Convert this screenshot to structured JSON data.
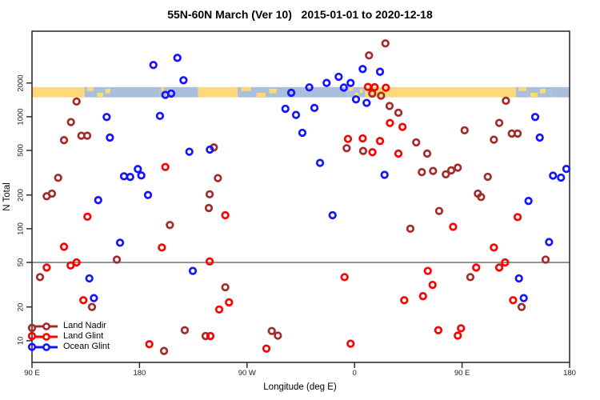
{
  "title": "55N-60N March (Ver 10)   2015-01-01 to 2020-12-18",
  "chart_data": {
    "type": "scatter",
    "title": "55N-60N March (Ver 10)   2015-01-01 to 2020-12-18",
    "xlabel": "Longitude (deg E)",
    "ylabel": "N Total",
    "x_axis": {
      "range": [
        90,
        540
      ],
      "note": "longitude increases eastward from 90E, wrapping through 180, 90W, 0, 90E to 180",
      "ticks": [
        {
          "value": 90,
          "label": "90 E"
        },
        {
          "value": 180,
          "label": "180"
        },
        {
          "value": 270,
          "label": "90 W"
        },
        {
          "value": 360,
          "label": "0"
        },
        {
          "value": 450,
          "label": "90 E"
        },
        {
          "value": 540,
          "label": "180"
        }
      ]
    },
    "y_axis": {
      "scale": "log",
      "range": [
        6.4,
        5807
      ],
      "ticks": [
        {
          "value": 10,
          "label": "10"
        },
        {
          "value": 20,
          "label": "20"
        },
        {
          "value": 50,
          "label": "50"
        },
        {
          "value": 100,
          "label": "100"
        },
        {
          "value": 200,
          "label": "200"
        },
        {
          "value": 500,
          "label": "500"
        },
        {
          "value": 1000,
          "label": "1000"
        },
        {
          "value": 2000,
          "label": "2000"
        }
      ]
    },
    "reference_line": {
      "value": 50,
      "color": "#666666"
    },
    "coast_band": {
      "top_value": 1840,
      "bottom_value": 1490,
      "land_color": "#FDD97A",
      "ocean_color": "#A9BFDB",
      "segments": [
        {
          "from": 90,
          "to": 134,
          "type": "land"
        },
        {
          "from": 134,
          "to": 159,
          "type": "mixed"
        },
        {
          "from": 159,
          "to": 197,
          "type": "ocean"
        },
        {
          "from": 197,
          "to": 209,
          "type": "mixed"
        },
        {
          "from": 209,
          "to": 229,
          "type": "ocean"
        },
        {
          "from": 229,
          "to": 262,
          "type": "land"
        },
        {
          "from": 262,
          "to": 300,
          "type": "mixed"
        },
        {
          "from": 300,
          "to": 354,
          "type": "ocean"
        },
        {
          "from": 354,
          "to": 369,
          "type": "mixed"
        },
        {
          "from": 369,
          "to": 495,
          "type": "land"
        },
        {
          "from": 495,
          "to": 524,
          "type": "mixed"
        },
        {
          "from": 524,
          "to": 540,
          "type": "ocean"
        }
      ]
    },
    "legend": {
      "position": "bottom-left"
    },
    "series": [
      {
        "name": "Land Nadir",
        "color": "#A52A2A",
        "points": [
          [
            90,
            13
          ],
          [
            96.7,
            37
          ],
          [
            102.3,
            195
          ],
          [
            106.7,
            206
          ],
          [
            111.9,
            285
          ],
          [
            116.8,
            618
          ],
          [
            122.6,
            896
          ],
          [
            127.3,
            1368
          ],
          [
            131.3,
            677
          ],
          [
            136.2,
            677
          ],
          [
            140.2,
            20
          ],
          [
            161,
            53
          ],
          [
            200.5,
            8.1
          ],
          [
            205.4,
            108
          ],
          [
            217.9,
            12.4
          ],
          [
            235.3,
            11
          ],
          [
            238,
            153
          ],
          [
            238.7,
            203
          ],
          [
            242.2,
            532
          ],
          [
            245.6,
            283
          ],
          [
            251.8,
            30
          ],
          [
            290.7,
            12.2
          ],
          [
            295.8,
            11.1
          ],
          [
            353.4,
            524
          ],
          [
            367.2,
            495
          ],
          [
            372.1,
            3530
          ],
          [
            374.8,
            1611
          ],
          [
            382.2,
            1542
          ],
          [
            385.8,
            4520
          ],
          [
            389.3,
            1248
          ],
          [
            396.7,
            1086
          ],
          [
            406.7,
            100
          ],
          [
            411.6,
            590
          ],
          [
            416.3,
            320
          ],
          [
            420.8,
            469
          ],
          [
            425.7,
            328
          ],
          [
            430.8,
            144
          ],
          [
            436.4,
            306
          ],
          [
            440.9,
            332
          ],
          [
            446.4,
            351
          ],
          [
            452.1,
            757
          ],
          [
            456.9,
            37
          ],
          [
            463.2,
            206
          ],
          [
            465.9,
            192
          ],
          [
            471.5,
            291
          ],
          [
            476.6,
            624
          ],
          [
            481.1,
            881
          ],
          [
            486.7,
            1390
          ],
          [
            491.6,
            708
          ],
          [
            496.5,
            708
          ],
          [
            499.8,
            20
          ],
          [
            519.9,
            53
          ]
        ]
      },
      {
        "name": "Land Glint",
        "color": "#FF0000",
        "points": [
          [
            90,
            11
          ],
          [
            102.3,
            45
          ],
          [
            116.8,
            69
          ],
          [
            122.3,
            47
          ],
          [
            127.3,
            50
          ],
          [
            133,
            23
          ],
          [
            136.4,
            128
          ],
          [
            188.2,
            9.3
          ],
          [
            198.7,
            68
          ],
          [
            201.6,
            356
          ],
          [
            238.7,
            51
          ],
          [
            239.3,
            11
          ],
          [
            246.7,
            19
          ],
          [
            251.8,
            132
          ],
          [
            254.9,
            22
          ],
          [
            286.2,
            8.5
          ],
          [
            351.6,
            37
          ],
          [
            354.5,
            634
          ],
          [
            356.7,
            9.4
          ],
          [
            366.8,
            641
          ],
          [
            371.2,
            1845
          ],
          [
            375,
            482
          ],
          [
            376.8,
            1835
          ],
          [
            381.3,
            607
          ],
          [
            386.2,
            1816
          ],
          [
            389.6,
            879
          ],
          [
            396.7,
            469
          ],
          [
            400.1,
            811
          ],
          [
            401.6,
            23
          ],
          [
            417.3,
            25
          ],
          [
            421.3,
            42
          ],
          [
            425.3,
            31.5
          ],
          [
            430.1,
            12.4
          ],
          [
            442.5,
            104
          ],
          [
            446.4,
            11.1
          ],
          [
            449.1,
            12.9
          ],
          [
            461.8,
            45
          ],
          [
            476.6,
            68
          ],
          [
            481.1,
            45
          ],
          [
            486,
            50
          ],
          [
            492.7,
            23
          ],
          [
            496.5,
            127
          ]
        ]
      },
      {
        "name": "Ocean Glint",
        "color": "#1414FF",
        "points": [
          [
            90,
            8.8
          ],
          [
            138,
            36
          ],
          [
            141.8,
            24
          ],
          [
            145.4,
            180
          ],
          [
            152.5,
            995
          ],
          [
            155.2,
            652
          ],
          [
            163.7,
            75
          ],
          [
            167,
            294
          ],
          [
            172.2,
            290
          ],
          [
            178.6,
            341
          ],
          [
            181.5,
            299
          ],
          [
            187.1,
            200
          ],
          [
            191.6,
            2897
          ],
          [
            197.1,
            1017
          ],
          [
            201.6,
            1567
          ],
          [
            206.5,
            1611
          ],
          [
            211.7,
            3357
          ],
          [
            216.8,
            2118
          ],
          [
            221.7,
            487
          ],
          [
            224.6,
            42
          ],
          [
            238.9,
            509
          ],
          [
            302.1,
            1178
          ],
          [
            307,
            1638
          ],
          [
            311,
            1038
          ],
          [
            316.3,
            719
          ],
          [
            322.1,
            1828
          ],
          [
            326.4,
            1199
          ],
          [
            331.1,
            387
          ],
          [
            336.6,
            2004
          ],
          [
            341.6,
            132
          ],
          [
            346.7,
            2275
          ],
          [
            351,
            1822
          ],
          [
            356.7,
            2004
          ],
          [
            361.2,
            1429
          ],
          [
            366.8,
            2667
          ],
          [
            370.1,
            1330
          ],
          [
            381.3,
            2523
          ],
          [
            385.1,
            303
          ],
          [
            497.6,
            36
          ],
          [
            501.6,
            24
          ],
          [
            505.6,
            177
          ],
          [
            511.2,
            995
          ],
          [
            515,
            652
          ],
          [
            522.8,
            76
          ],
          [
            526.1,
            298
          ],
          [
            532.8,
            286
          ],
          [
            537.3,
            342
          ]
        ]
      }
    ]
  }
}
